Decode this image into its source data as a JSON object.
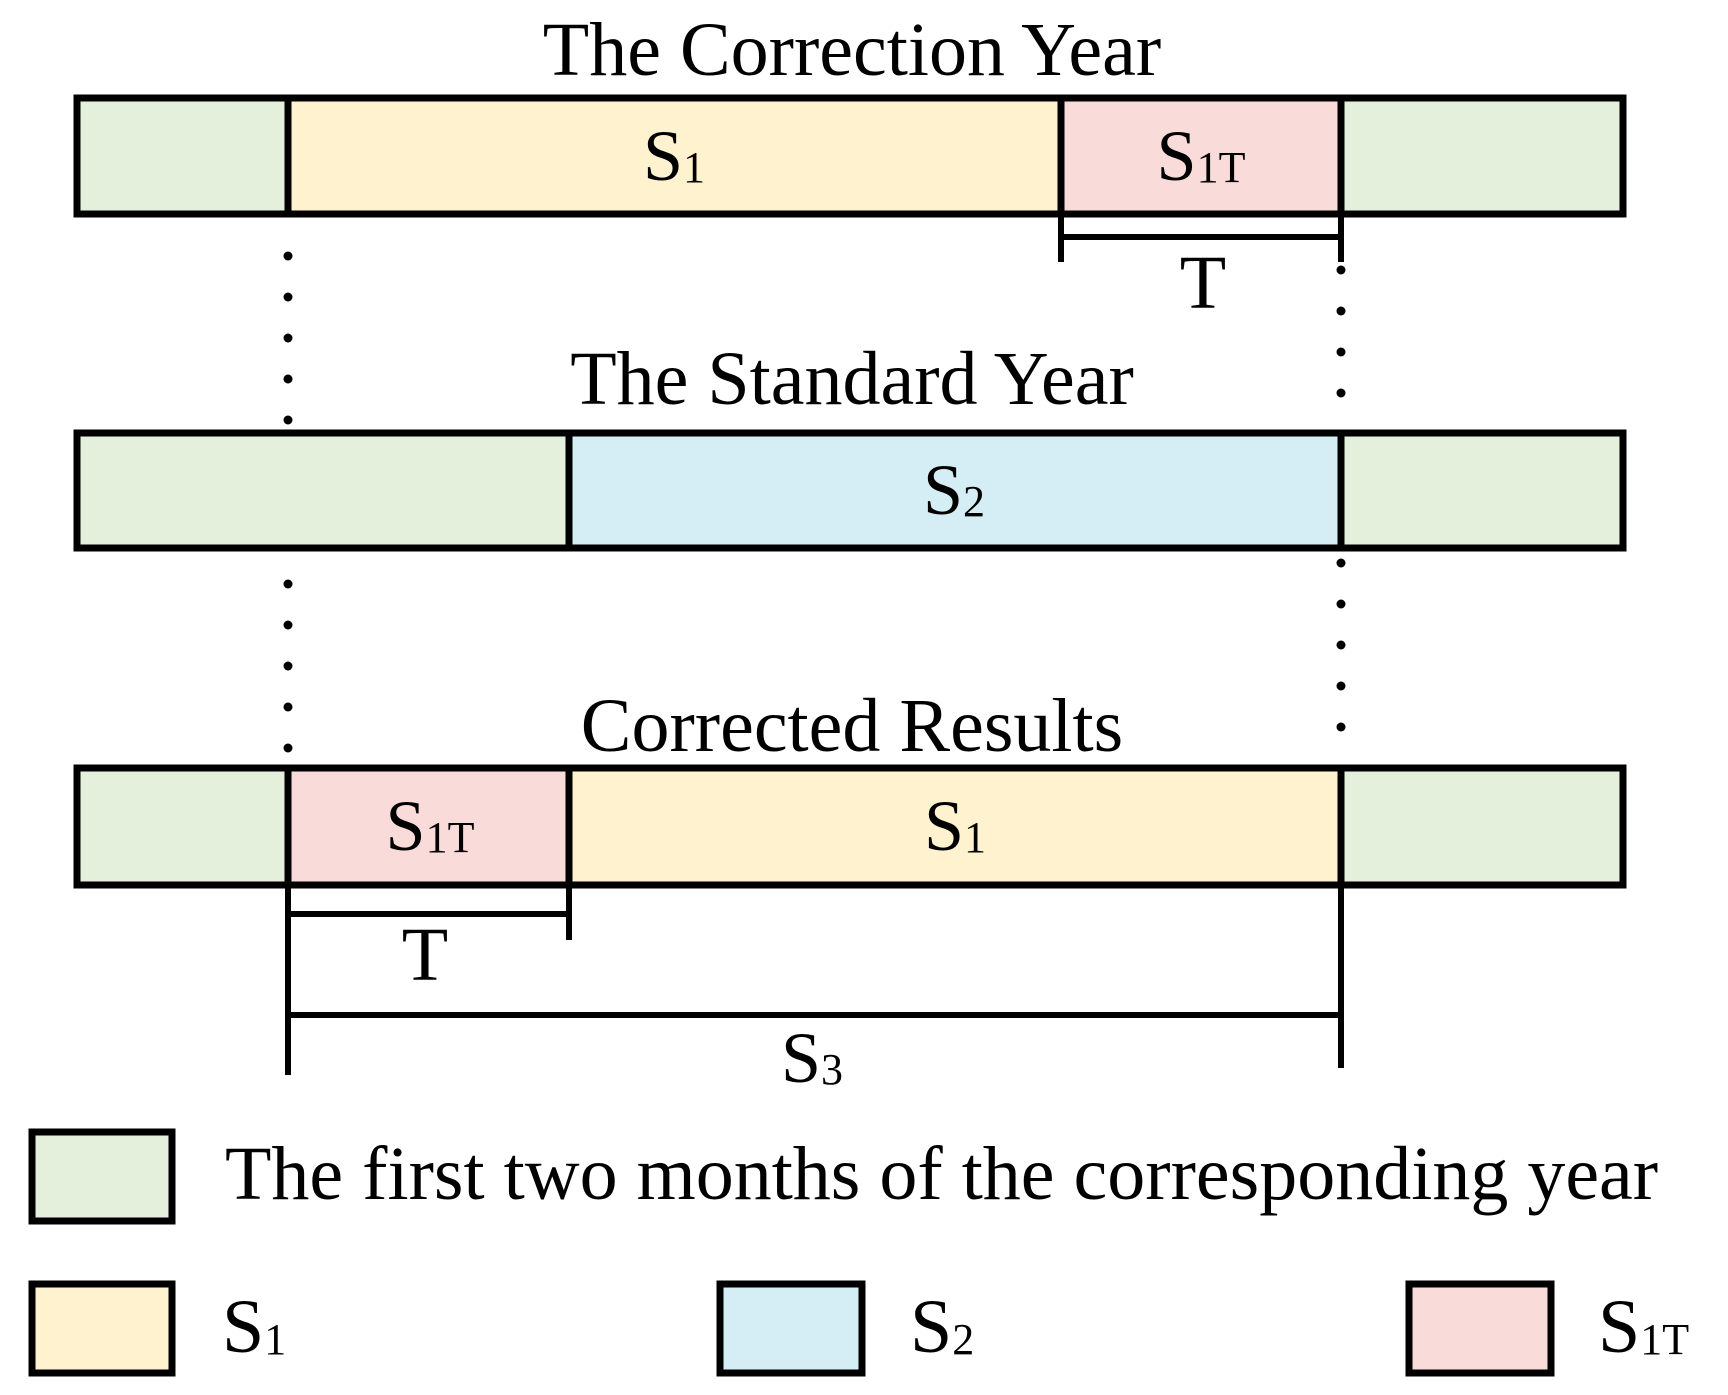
{
  "colors": {
    "green": "#E4EFDC",
    "yellow": "#FFF2CE",
    "blue": "#D5EDF4",
    "pink": "#F9DBDA",
    "stroke": "#000000"
  },
  "rows": {
    "correction": {
      "title": "The Correction Year",
      "segments": [
        {
          "base": "",
          "sub": "",
          "color": "green"
        },
        {
          "base": "S",
          "sub": "1",
          "color": "yellow"
        },
        {
          "base": "S",
          "sub": "1T",
          "color": "pink"
        },
        {
          "base": "",
          "sub": "",
          "color": "green"
        }
      ]
    },
    "standard": {
      "title": "The Standard Year",
      "segments": [
        {
          "base": "",
          "sub": "",
          "color": "green"
        },
        {
          "base": "S",
          "sub": "2",
          "color": "blue"
        },
        {
          "base": "",
          "sub": "",
          "color": "green"
        }
      ]
    },
    "corrected": {
      "title": "Corrected Results",
      "segments": [
        {
          "base": "",
          "sub": "",
          "color": "green"
        },
        {
          "base": "S",
          "sub": "1T",
          "color": "pink"
        },
        {
          "base": "S",
          "sub": "1",
          "color": "yellow"
        },
        {
          "base": "",
          "sub": "",
          "color": "green"
        }
      ]
    }
  },
  "dimensions": {
    "t_top": "T",
    "t_bottom": "T",
    "s3": {
      "base": "S",
      "sub": "3"
    }
  },
  "legend": {
    "green_label": "The first two months of the corresponding year",
    "yellow_label": {
      "base": "S",
      "sub": "1"
    },
    "blue_label": {
      "base": "S",
      "sub": "2"
    },
    "pink_label": {
      "base": "S",
      "sub": "1T"
    }
  }
}
